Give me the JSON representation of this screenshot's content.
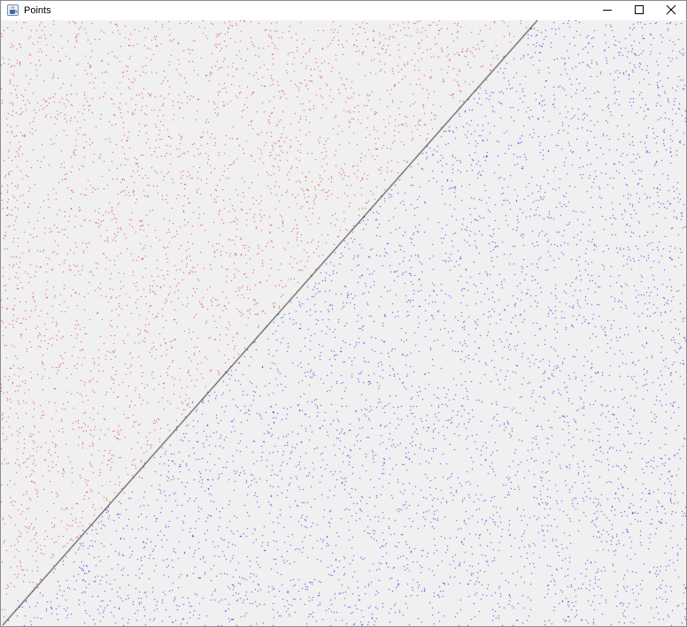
{
  "window": {
    "title": "Points",
    "icon": "java-coffee-cup-icon",
    "controls": [
      "minimize-icon",
      "maximize-icon",
      "close-icon"
    ]
  },
  "plot": {
    "background_color": "#f0f0f0",
    "colors": {
      "above_line": "#e03030",
      "below_line": "#2a2ae0",
      "separator_line": "#000000"
    }
  }
}
